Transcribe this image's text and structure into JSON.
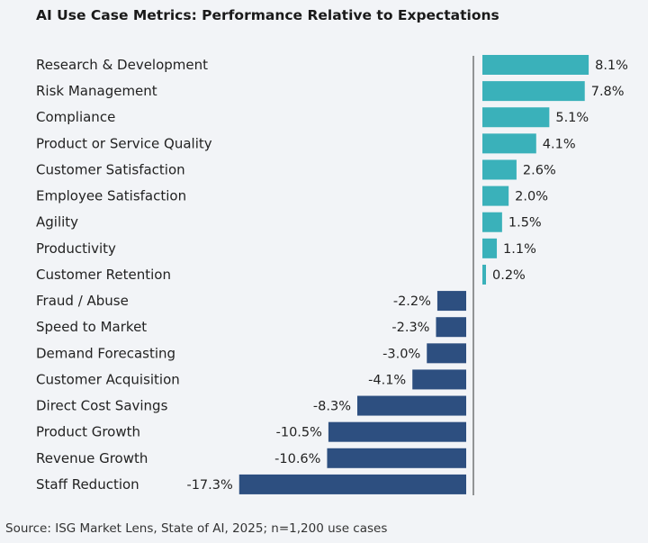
{
  "chart_data": {
    "type": "bar",
    "orientation": "horizontal",
    "title": "AI Use Case Metrics: Performance Relative to Expectations",
    "categories": [
      "Research & Development",
      "Risk Management",
      "Compliance",
      "Product or Service Quality",
      "Customer Satisfaction",
      "Employee Satisfaction",
      "Agility",
      "Productivity",
      "Customer Retention",
      "Fraud / Abuse",
      "Speed to Market",
      "Demand Forecasting",
      "Customer Acquisition",
      "Direct Cost Savings",
      "Product Growth",
      "Revenue Growth",
      "Staff Reduction"
    ],
    "values": [
      8.1,
      7.8,
      5.1,
      4.1,
      2.6,
      2.0,
      1.5,
      1.1,
      0.2,
      -2.2,
      -2.3,
      -3.0,
      -4.1,
      -8.3,
      -10.5,
      -10.6,
      -17.3
    ],
    "data_labels": [
      "8.1%",
      "7.8%",
      "5.1%",
      "4.1%",
      "2.6%",
      "2.0%",
      "1.5%",
      "1.1%",
      "0.2%",
      "-2.2%",
      "-2.3%",
      "-3.0%",
      "-4.1%",
      "-8.3%",
      "-10.5%",
      "-10.6%",
      "-17.3%"
    ],
    "unit": "%",
    "colors": {
      "positive": "#3ab1ba",
      "negative": "#2d4f80"
    },
    "grid": false,
    "legend": "none",
    "source": "Source: ISG Market Lens, State of AI, 2025; n=1,200 use cases"
  }
}
